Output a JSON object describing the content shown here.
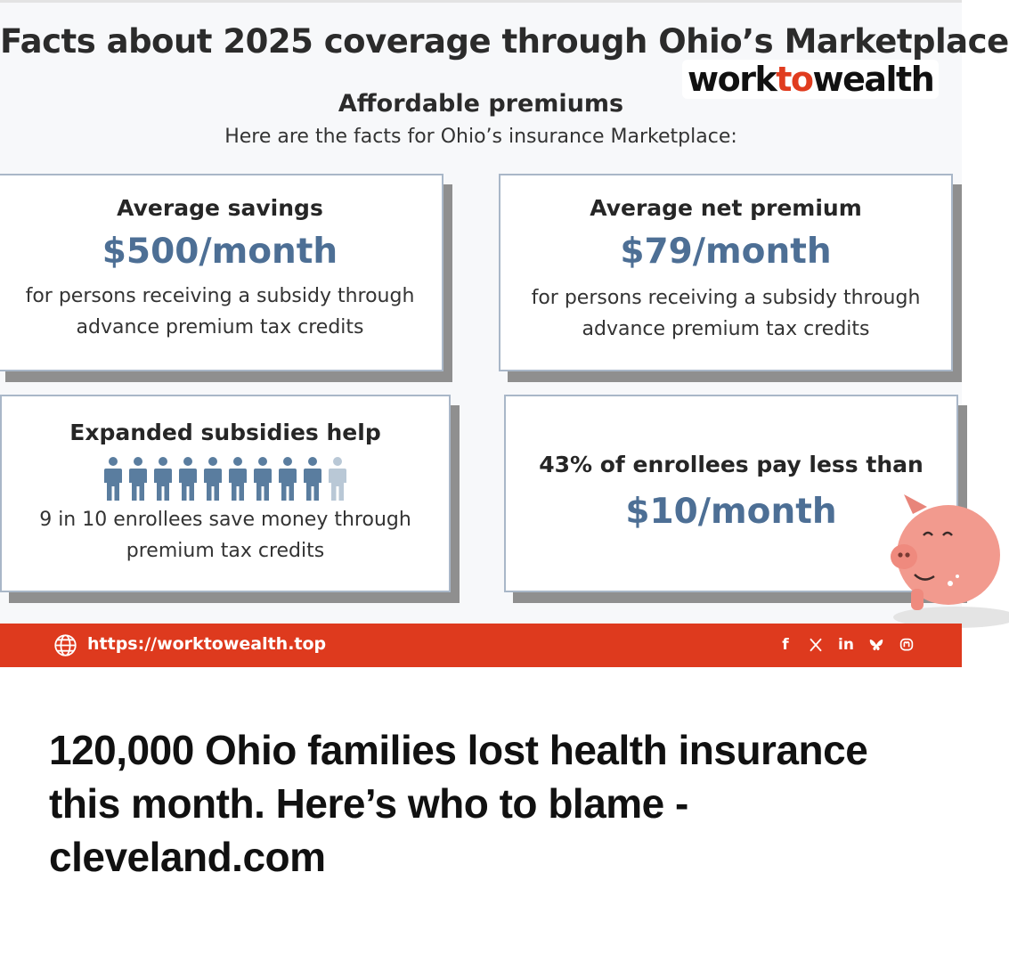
{
  "infographic": {
    "title": "Facts about 2025 coverage through Ohio’s Marketplace",
    "logo": {
      "part1": "work",
      "part2": "to",
      "part3": "wealth",
      "accent_color": "#e03c1f"
    },
    "subtitle": "Affordable premiums",
    "intro": "Here are the facts for Ohio’s insurance Marketplace:",
    "cards": {
      "savings": {
        "heading": "Average savings",
        "value": "$500/month",
        "note_line1": "for persons receiving a subsidy through",
        "note_line2": "advance premium tax credits"
      },
      "net_premium": {
        "heading": "Average net premium",
        "value": "$79/month",
        "note_line1": "for persons receiving a subsidy through",
        "note_line2": "advance premium tax credits"
      },
      "expanded": {
        "heading": "Expanded subsidies help",
        "people_total": 10,
        "people_highlighted": 9,
        "note_line1": "9 in 10 enrollees save money through",
        "note_line2": "premium tax credits"
      },
      "enrollees": {
        "heading": "43% of enrollees pay less than",
        "value": "$10/month"
      }
    },
    "colors": {
      "value_blue": "#4d6f95",
      "person_dark": "#5a7d9f",
      "person_light": "#b9c8d6"
    }
  },
  "url_bar": {
    "url": "https://worktowealth.top",
    "bg_color": "#de3a1e",
    "icons": [
      "globe-icon",
      "facebook-icon",
      "x-icon",
      "linkedin-icon",
      "bluesky-icon",
      "mastodon-icon"
    ],
    "facebook_label": "f",
    "linkedin_label": "in"
  },
  "headline": "120,000 Ohio families lost health insurance this month. Here’s who to blame - cleveland.com"
}
